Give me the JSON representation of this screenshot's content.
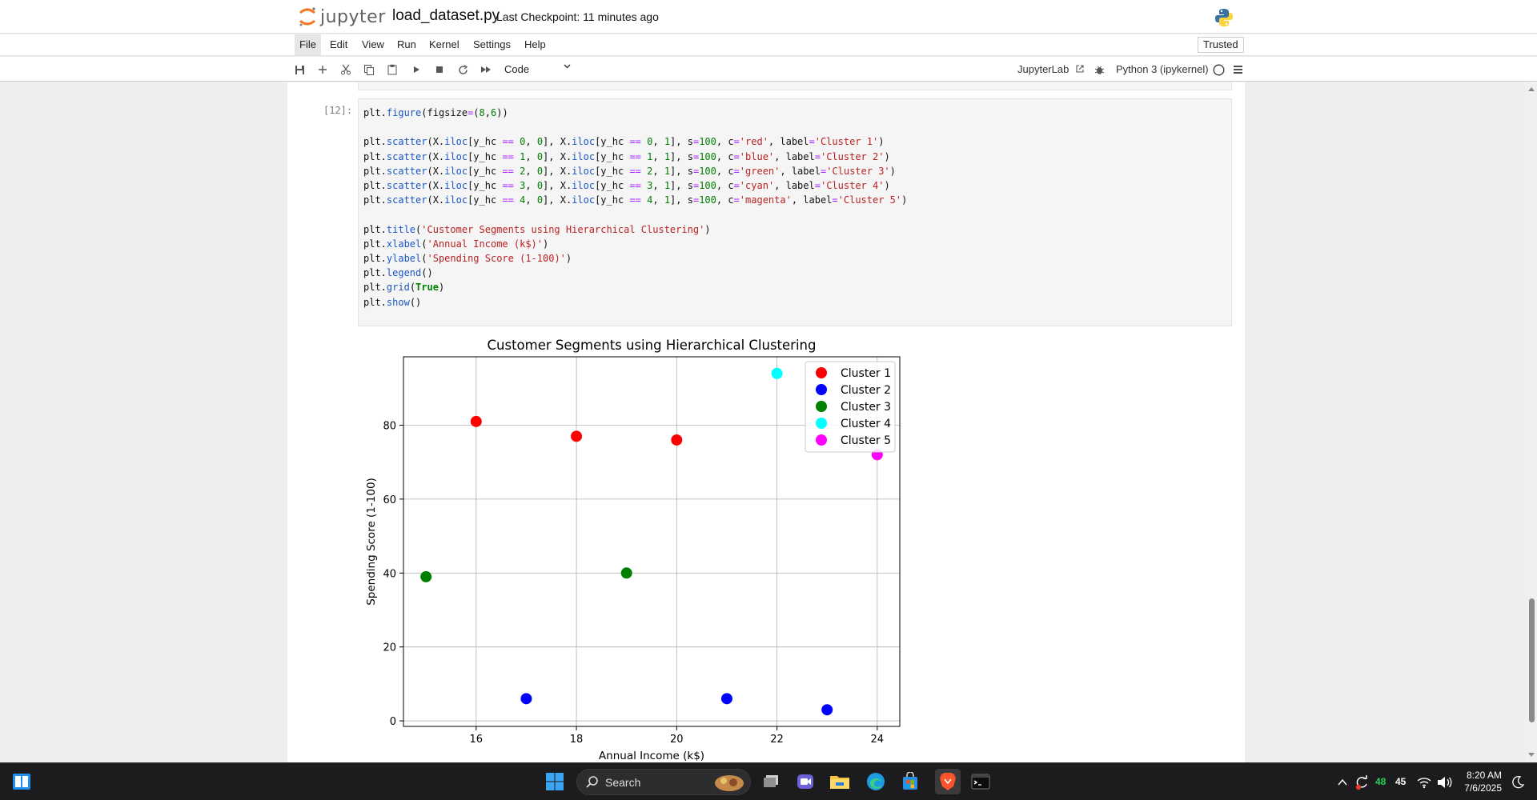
{
  "header": {
    "logo_text": "jupyter",
    "notebook_name": "load_dataset.py",
    "checkpoint": "Last Checkpoint: 11 minutes ago"
  },
  "menu": {
    "items": [
      "File",
      "Edit",
      "View",
      "Run",
      "Kernel",
      "Settings",
      "Help"
    ],
    "trusted": "Trusted"
  },
  "toolbar": {
    "cell_type": "Code",
    "jupyterlab_link": "JupyterLab",
    "kernel": "Python 3 (ipykernel)"
  },
  "cell": {
    "prompt": "[12]:",
    "code_lines": [
      "plt.figure(figsize=(8,6))",
      "",
      "plt.scatter(X.iloc[y_hc == 0, 0], X.iloc[y_hc == 0, 1], s=100, c='red', label='Cluster 1')",
      "plt.scatter(X.iloc[y_hc == 1, 0], X.iloc[y_hc == 1, 1], s=100, c='blue', label='Cluster 2')",
      "plt.scatter(X.iloc[y_hc == 2, 0], X.iloc[y_hc == 2, 1], s=100, c='green', label='Cluster 3')",
      "plt.scatter(X.iloc[y_hc == 3, 0], X.iloc[y_hc == 3, 1], s=100, c='cyan', label='Cluster 4')",
      "plt.scatter(X.iloc[y_hc == 4, 0], X.iloc[y_hc == 4, 1], s=100, c='magenta', label='Cluster 5')",
      "",
      "plt.title('Customer Segments using Hierarchical Clustering')",
      "plt.xlabel('Annual Income (k$)')",
      "plt.ylabel('Spending Score (1-100)')",
      "plt.legend()",
      "plt.grid(True)",
      "plt.show()"
    ]
  },
  "chart_data": {
    "type": "scatter",
    "title": "Customer Segments using Hierarchical Clustering",
    "xlabel": "Annual Income (k$)",
    "ylabel": "Spending Score (1-100)",
    "xlim": [
      14.55,
      24.45
    ],
    "ylim": [
      -1.5,
      98.5
    ],
    "xticks": [
      16,
      18,
      20,
      22,
      24
    ],
    "yticks": [
      0,
      20,
      40,
      60,
      80
    ],
    "grid": true,
    "legend_position": "top-right",
    "series": [
      {
        "name": "Cluster 1",
        "color": "#ff0000",
        "points": [
          [
            16,
            81
          ],
          [
            18,
            77
          ],
          [
            20,
            76
          ]
        ]
      },
      {
        "name": "Cluster 2",
        "color": "#0000ff",
        "points": [
          [
            17,
            6
          ],
          [
            21,
            6
          ],
          [
            23,
            3
          ]
        ]
      },
      {
        "name": "Cluster 3",
        "color": "#008000",
        "points": [
          [
            15,
            39
          ],
          [
            19,
            40
          ]
        ]
      },
      {
        "name": "Cluster 4",
        "color": "#00ffff",
        "points": [
          [
            22,
            94
          ]
        ]
      },
      {
        "name": "Cluster 5",
        "color": "#ff00ff",
        "points": [
          [
            24,
            72
          ]
        ]
      }
    ]
  },
  "taskbar": {
    "search_label": "Search",
    "time": "8:20 AM",
    "date": "7/6/2025",
    "tray_a": "48",
    "tray_b": "45"
  }
}
